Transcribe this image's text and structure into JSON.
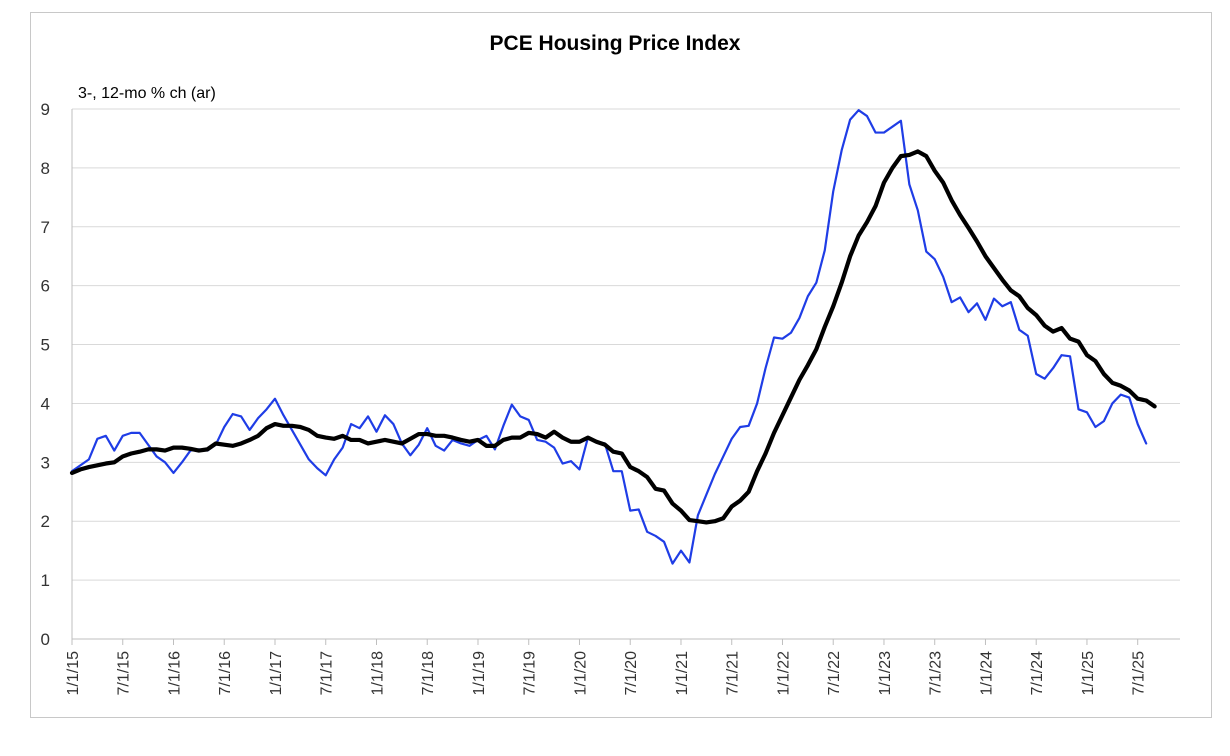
{
  "chart_data": {
    "type": "line",
    "title": "PCE Housing Price Index",
    "ylabel": "3-, 12-mo % ch (ar)",
    "xlabel": "",
    "ylim": [
      0,
      9
    ],
    "yticks": [
      "0",
      "1",
      "2",
      "3",
      "4",
      "5",
      "6",
      "7",
      "8",
      "9"
    ],
    "xticks": [
      "1/1/15",
      "7/1/15",
      "1/1/16",
      "7/1/16",
      "1/1/17",
      "7/1/17",
      "1/1/18",
      "7/1/18",
      "1/1/19",
      "7/1/19",
      "1/1/20",
      "7/1/20",
      "1/1/21",
      "7/1/21",
      "1/1/22",
      "7/1/22",
      "1/1/23",
      "7/1/23",
      "1/1/24",
      "7/1/24",
      "1/1/25",
      "7/1/25"
    ],
    "grid": "horizontal",
    "series": [
      {
        "color": "#1f3de6",
        "points": [
          [
            "2015-01",
            2.85
          ],
          [
            "2015-03",
            3.05
          ],
          [
            "2015-04",
            3.4
          ],
          [
            "2015-05",
            3.45
          ],
          [
            "2015-06",
            3.2
          ],
          [
            "2015-07",
            3.45
          ],
          [
            "2015-08",
            3.5
          ],
          [
            "2015-09",
            3.5
          ],
          [
            "2015-10",
            3.3
          ],
          [
            "2015-11",
            3.1
          ],
          [
            "2015-12",
            3.0
          ],
          [
            "2016-01",
            2.82
          ],
          [
            "2016-02",
            3.0
          ],
          [
            "2016-03",
            3.2
          ],
          [
            "2016-04",
            3.22
          ],
          [
            "2016-05",
            3.2
          ],
          [
            "2016-06",
            3.3
          ],
          [
            "2016-07",
            3.6
          ],
          [
            "2016-08",
            3.82
          ],
          [
            "2016-09",
            3.78
          ],
          [
            "2016-10",
            3.55
          ],
          [
            "2016-11",
            3.75
          ],
          [
            "2016-12",
            3.9
          ],
          [
            "2017-01",
            4.08
          ],
          [
            "2017-02",
            3.8
          ],
          [
            "2017-03",
            3.55
          ],
          [
            "2017-04",
            3.3
          ],
          [
            "2017-05",
            3.05
          ],
          [
            "2017-06",
            2.9
          ],
          [
            "2017-07",
            2.78
          ],
          [
            "2017-08",
            3.05
          ],
          [
            "2017-09",
            3.25
          ],
          [
            "2017-10",
            3.65
          ],
          [
            "2017-11",
            3.58
          ],
          [
            "2017-12",
            3.78
          ],
          [
            "2018-01",
            3.52
          ],
          [
            "2018-02",
            3.8
          ],
          [
            "2018-03",
            3.65
          ],
          [
            "2018-04",
            3.32
          ],
          [
            "2018-05",
            3.12
          ],
          [
            "2018-06",
            3.3
          ],
          [
            "2018-07",
            3.58
          ],
          [
            "2018-08",
            3.28
          ],
          [
            "2018-09",
            3.2
          ],
          [
            "2018-10",
            3.38
          ],
          [
            "2018-11",
            3.32
          ],
          [
            "2018-12",
            3.28
          ],
          [
            "2019-01",
            3.38
          ],
          [
            "2019-02",
            3.45
          ],
          [
            "2019-03",
            3.22
          ],
          [
            "2019-04",
            3.62
          ],
          [
            "2019-05",
            3.98
          ],
          [
            "2019-06",
            3.78
          ],
          [
            "2019-07",
            3.72
          ],
          [
            "2019-08",
            3.38
          ],
          [
            "2019-09",
            3.35
          ],
          [
            "2019-10",
            3.25
          ],
          [
            "2019-11",
            2.98
          ],
          [
            "2019-12",
            3.02
          ],
          [
            "2020-01",
            2.88
          ],
          [
            "2020-02",
            3.42
          ],
          [
            "2020-03",
            3.35
          ],
          [
            "2020-04",
            3.32
          ],
          [
            "2020-05",
            2.85
          ],
          [
            "2020-06",
            2.85
          ],
          [
            "2020-07",
            2.18
          ],
          [
            "2020-08",
            2.2
          ],
          [
            "2020-09",
            1.82
          ],
          [
            "2020-10",
            1.75
          ],
          [
            "2020-11",
            1.65
          ],
          [
            "2020-12",
            1.28
          ],
          [
            "2021-01",
            1.5
          ],
          [
            "2021-02",
            1.3
          ],
          [
            "2021-03",
            2.1
          ],
          [
            "2021-04",
            2.45
          ],
          [
            "2021-05",
            2.8
          ],
          [
            "2021-06",
            3.1
          ],
          [
            "2021-07",
            3.4
          ],
          [
            "2021-08",
            3.6
          ],
          [
            "2021-09",
            3.62
          ],
          [
            "2021-10",
            4.0
          ],
          [
            "2021-11",
            4.6
          ],
          [
            "2021-12",
            5.12
          ],
          [
            "2022-01",
            5.1
          ],
          [
            "2022-02",
            5.2
          ],
          [
            "2022-03",
            5.45
          ],
          [
            "2022-04",
            5.82
          ],
          [
            "2022-05",
            6.05
          ],
          [
            "2022-06",
            6.6
          ],
          [
            "2022-07",
            7.6
          ],
          [
            "2022-08",
            8.3
          ],
          [
            "2022-09",
            8.82
          ],
          [
            "2022-10",
            8.98
          ],
          [
            "2022-11",
            8.88
          ],
          [
            "2022-12",
            8.6
          ],
          [
            "2023-01",
            8.6
          ],
          [
            "2023-02",
            8.7
          ],
          [
            "2023-03",
            8.8
          ],
          [
            "2023-04",
            7.72
          ],
          [
            "2023-05",
            7.28
          ],
          [
            "2023-06",
            6.58
          ],
          [
            "2023-07",
            6.45
          ],
          [
            "2023-08",
            6.15
          ],
          [
            "2023-09",
            5.72
          ],
          [
            "2023-10",
            5.8
          ],
          [
            "2023-11",
            5.55
          ],
          [
            "2023-12",
            5.7
          ],
          [
            "2024-01",
            5.42
          ],
          [
            "2024-02",
            5.78
          ],
          [
            "2024-03",
            5.65
          ],
          [
            "2024-04",
            5.72
          ],
          [
            "2024-05",
            5.25
          ],
          [
            "2024-06",
            5.15
          ],
          [
            "2024-07",
            4.5
          ],
          [
            "2024-08",
            4.42
          ],
          [
            "2024-09",
            4.6
          ],
          [
            "2024-10",
            4.82
          ],
          [
            "2024-11",
            4.8
          ],
          [
            "2024-12",
            3.9
          ],
          [
            "2025-01",
            3.85
          ],
          [
            "2025-02",
            3.6
          ],
          [
            "2025-03",
            3.7
          ],
          [
            "2025-04",
            4.0
          ],
          [
            "2025-05",
            4.15
          ],
          [
            "2025-06",
            4.1
          ],
          [
            "2025-07",
            3.65
          ],
          [
            "2025-08",
            3.32
          ]
        ]
      },
      {
        "color": "#000000",
        "points": [
          [
            "2015-01",
            2.82
          ],
          [
            "2015-02",
            2.88
          ],
          [
            "2015-03",
            2.92
          ],
          [
            "2015-04",
            2.95
          ],
          [
            "2015-05",
            2.98
          ],
          [
            "2015-06",
            3.0
          ],
          [
            "2015-07",
            3.1
          ],
          [
            "2015-08",
            3.15
          ],
          [
            "2015-09",
            3.18
          ],
          [
            "2015-10",
            3.22
          ],
          [
            "2015-11",
            3.22
          ],
          [
            "2015-12",
            3.2
          ],
          [
            "2016-01",
            3.25
          ],
          [
            "2016-02",
            3.25
          ],
          [
            "2016-03",
            3.23
          ],
          [
            "2016-04",
            3.2
          ],
          [
            "2016-05",
            3.22
          ],
          [
            "2016-06",
            3.32
          ],
          [
            "2016-07",
            3.3
          ],
          [
            "2016-08",
            3.28
          ],
          [
            "2016-09",
            3.32
          ],
          [
            "2016-10",
            3.38
          ],
          [
            "2016-11",
            3.45
          ],
          [
            "2016-12",
            3.58
          ],
          [
            "2017-01",
            3.65
          ],
          [
            "2017-02",
            3.62
          ],
          [
            "2017-03",
            3.62
          ],
          [
            "2017-04",
            3.6
          ],
          [
            "2017-05",
            3.55
          ],
          [
            "2017-06",
            3.45
          ],
          [
            "2017-07",
            3.42
          ],
          [
            "2017-08",
            3.4
          ],
          [
            "2017-09",
            3.45
          ],
          [
            "2017-10",
            3.38
          ],
          [
            "2017-11",
            3.38
          ],
          [
            "2017-12",
            3.32
          ],
          [
            "2018-01",
            3.35
          ],
          [
            "2018-02",
            3.38
          ],
          [
            "2018-03",
            3.35
          ],
          [
            "2018-04",
            3.32
          ],
          [
            "2018-05",
            3.4
          ],
          [
            "2018-06",
            3.48
          ],
          [
            "2018-07",
            3.48
          ],
          [
            "2018-08",
            3.45
          ],
          [
            "2018-09",
            3.45
          ],
          [
            "2018-10",
            3.42
          ],
          [
            "2018-11",
            3.38
          ],
          [
            "2018-12",
            3.35
          ],
          [
            "2019-01",
            3.38
          ],
          [
            "2019-02",
            3.28
          ],
          [
            "2019-03",
            3.28
          ],
          [
            "2019-04",
            3.38
          ],
          [
            "2019-05",
            3.42
          ],
          [
            "2019-06",
            3.42
          ],
          [
            "2019-07",
            3.5
          ],
          [
            "2019-08",
            3.48
          ],
          [
            "2019-09",
            3.42
          ],
          [
            "2019-10",
            3.52
          ],
          [
            "2019-11",
            3.42
          ],
          [
            "2019-12",
            3.35
          ],
          [
            "2020-01",
            3.35
          ],
          [
            "2020-02",
            3.42
          ],
          [
            "2020-03",
            3.35
          ],
          [
            "2020-04",
            3.3
          ],
          [
            "2020-05",
            3.18
          ],
          [
            "2020-06",
            3.15
          ],
          [
            "2020-07",
            2.92
          ],
          [
            "2020-08",
            2.85
          ],
          [
            "2020-09",
            2.75
          ],
          [
            "2020-10",
            2.55
          ],
          [
            "2020-11",
            2.52
          ],
          [
            "2020-12",
            2.3
          ],
          [
            "2021-01",
            2.18
          ],
          [
            "2021-02",
            2.02
          ],
          [
            "2021-03",
            2.0
          ],
          [
            "2021-04",
            1.98
          ],
          [
            "2021-05",
            2.0
          ],
          [
            "2021-06",
            2.05
          ],
          [
            "2021-07",
            2.25
          ],
          [
            "2021-08",
            2.35
          ],
          [
            "2021-09",
            2.5
          ],
          [
            "2021-10",
            2.85
          ],
          [
            "2021-11",
            3.15
          ],
          [
            "2021-12",
            3.5
          ],
          [
            "2022-01",
            3.8
          ],
          [
            "2022-02",
            4.1
          ],
          [
            "2022-03",
            4.4
          ],
          [
            "2022-04",
            4.65
          ],
          [
            "2022-05",
            4.92
          ],
          [
            "2022-06",
            5.3
          ],
          [
            "2022-07",
            5.65
          ],
          [
            "2022-08",
            6.05
          ],
          [
            "2022-09",
            6.5
          ],
          [
            "2022-10",
            6.85
          ],
          [
            "2022-11",
            7.08
          ],
          [
            "2022-12",
            7.35
          ],
          [
            "2023-01",
            7.75
          ],
          [
            "2023-02",
            8.0
          ],
          [
            "2023-03",
            8.2
          ],
          [
            "2023-04",
            8.22
          ],
          [
            "2023-05",
            8.28
          ],
          [
            "2023-06",
            8.2
          ],
          [
            "2023-07",
            7.95
          ],
          [
            "2023-08",
            7.75
          ],
          [
            "2023-09",
            7.45
          ],
          [
            "2023-10",
            7.2
          ],
          [
            "2023-11",
            6.98
          ],
          [
            "2023-12",
            6.75
          ],
          [
            "2024-01",
            6.5
          ],
          [
            "2024-02",
            6.3
          ],
          [
            "2024-03",
            6.1
          ],
          [
            "2024-04",
            5.92
          ],
          [
            "2024-05",
            5.82
          ],
          [
            "2024-06",
            5.62
          ],
          [
            "2024-07",
            5.5
          ],
          [
            "2024-08",
            5.32
          ],
          [
            "2024-09",
            5.22
          ],
          [
            "2024-10",
            5.28
          ],
          [
            "2024-11",
            5.1
          ],
          [
            "2024-12",
            5.05
          ],
          [
            "2025-01",
            4.82
          ],
          [
            "2025-02",
            4.72
          ],
          [
            "2025-03",
            4.5
          ],
          [
            "2025-04",
            4.35
          ],
          [
            "2025-05",
            4.3
          ],
          [
            "2025-06",
            4.22
          ],
          [
            "2025-07",
            4.08
          ],
          [
            "2025-08",
            4.05
          ],
          [
            "2025-09",
            3.95
          ]
        ]
      }
    ]
  }
}
